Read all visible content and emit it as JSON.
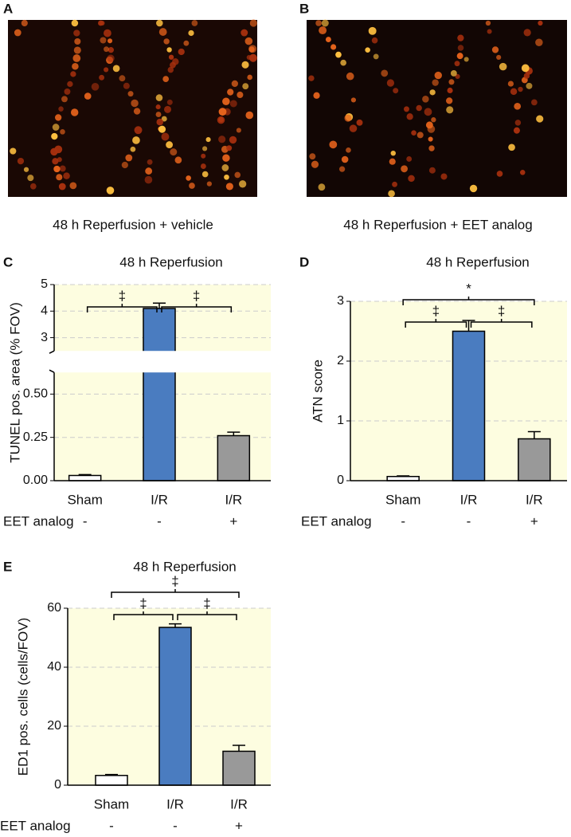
{
  "panels": [
    {
      "letter": "A",
      "caption": "48 h Reperfusion + vehicle"
    },
    {
      "letter": "B",
      "caption": "48 h Reperfusion + EET analog"
    }
  ],
  "chart_data": [
    {
      "type": "bar",
      "letter": "C",
      "title": "48 h Reperfusion",
      "ylabel": "TUNEL pos. area (% FOV)",
      "categories": [
        "Sham",
        "I/R",
        "I/R"
      ],
      "values": [
        0.03,
        4.1,
        0.26
      ],
      "errors": [
        0.005,
        0.2,
        0.02
      ],
      "colors": [
        "#ffffff",
        "#4a7cc0",
        "#999999"
      ],
      "ylim": [
        0,
        5
      ],
      "y_break": [
        0.625,
        2.5
      ],
      "yticks": [
        {
          "value": 0,
          "label": "0.00"
        },
        0.25,
        {
          "value": 0.5,
          "label": "0.50"
        },
        3,
        4,
        5
      ],
      "grid": true,
      "treatment": {
        "label": "EET analog",
        "values": [
          "-",
          "-",
          "+"
        ]
      },
      "brackets": [
        {
          "from": 0,
          "to": 1,
          "label": "‡"
        },
        {
          "from": 1,
          "to": 2,
          "label": "‡"
        }
      ]
    },
    {
      "type": "bar",
      "letter": "D",
      "title": "48 h Reperfusion",
      "ylabel": "ATN score",
      "categories": [
        "Sham",
        "I/R",
        "I/R"
      ],
      "values": [
        0.07,
        2.5,
        0.7
      ],
      "errors": [
        0.01,
        0.18,
        0.12
      ],
      "colors": [
        "#ffffff",
        "#4a7cc0",
        "#999999"
      ],
      "ylim": [
        0,
        3
      ],
      "yticks": [
        0,
        1,
        2,
        3
      ],
      "grid": true,
      "treatment": {
        "label": "EET analog",
        "values": [
          "-",
          "-",
          "+"
        ]
      },
      "brackets": [
        {
          "from": 0,
          "to": 1,
          "label": "‡"
        },
        {
          "from": 1,
          "to": 2,
          "label": "‡"
        },
        {
          "from": 0,
          "to": 2,
          "label": "*"
        }
      ]
    },
    {
      "type": "bar",
      "letter": "E",
      "title": "48 h Reperfusion",
      "ylabel": "ED1 pos. cells (cells/FOV)",
      "categories": [
        "Sham",
        "I/R",
        "I/R"
      ],
      "values": [
        3.3,
        53.5,
        11.5
      ],
      "errors": [
        0.3,
        1.2,
        2
      ],
      "colors": [
        "#ffffff",
        "#4a7cc0",
        "#999999"
      ],
      "ylim": [
        0,
        60
      ],
      "yticks": [
        0,
        20,
        40,
        60
      ],
      "grid": true,
      "treatment": {
        "label": "EET analog",
        "values": [
          "-",
          "-",
          "+"
        ]
      },
      "brackets": [
        {
          "from": 0,
          "to": 1,
          "label": "‡"
        },
        {
          "from": 1,
          "to": 2,
          "label": "‡"
        },
        {
          "from": 0,
          "to": 2,
          "label": "‡"
        }
      ]
    }
  ]
}
